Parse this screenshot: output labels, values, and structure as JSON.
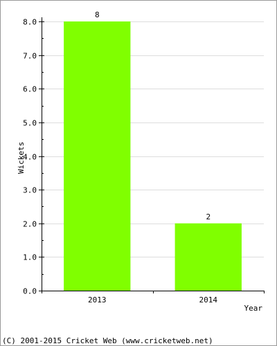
{
  "footer": {
    "copyright": "(C) 2001-2015 Cricket Web (www.cricketweb.net)"
  },
  "colors": {
    "bar": "#80ff00",
    "grid": "#dddddd",
    "axis": "#000000",
    "frame": "#999999",
    "background": "#ffffff"
  },
  "chart_data": {
    "type": "bar",
    "title": "",
    "xlabel": "Year",
    "ylabel": "Wickets",
    "categories": [
      "2013",
      "2014"
    ],
    "values": [
      8,
      2
    ],
    "data_labels": [
      "8",
      "2"
    ],
    "ylim": [
      0,
      8
    ],
    "yticks": [
      0,
      1,
      2,
      3,
      4,
      5,
      6,
      7,
      8
    ],
    "ytick_labels": [
      "0.0",
      "1.0",
      "2.0",
      "3.0",
      "4.0",
      "5.0",
      "6.0",
      "7.0",
      "8.0"
    ],
    "grid": true,
    "legend": "none"
  }
}
